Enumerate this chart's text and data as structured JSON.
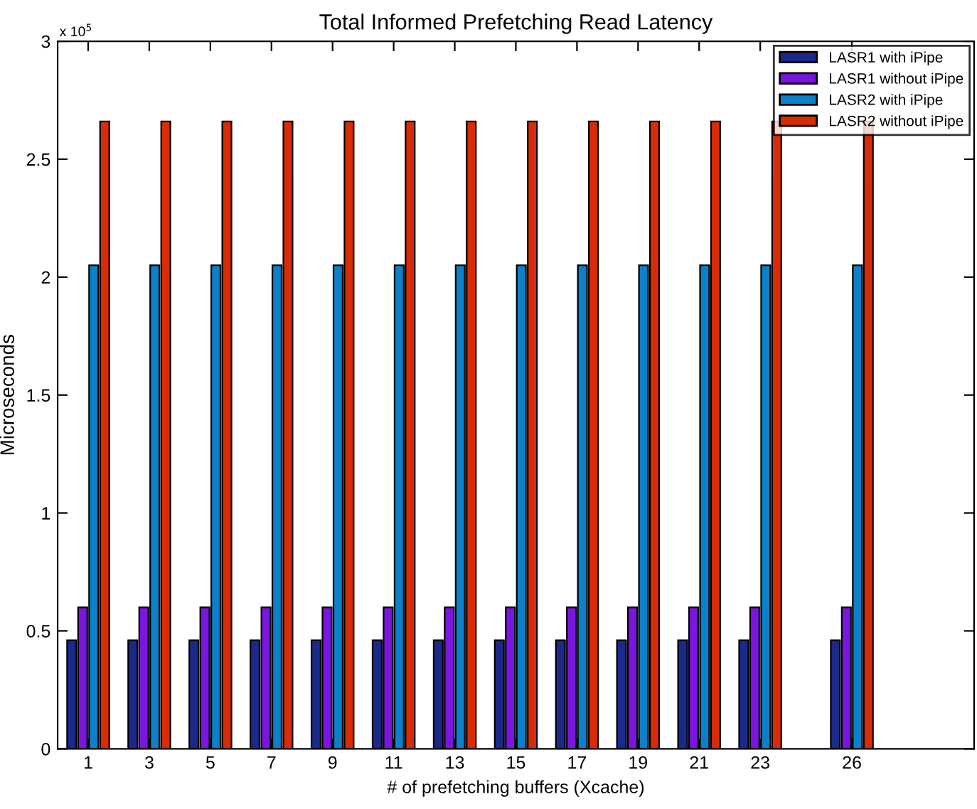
{
  "chart_data": {
    "type": "bar",
    "title": "Total Informed Prefetching Read Latency",
    "xlabel": "# of prefetching buffers (Xcache)",
    "ylabel": "Microseconds",
    "annotations": [
      "x 10$^{5}$"
    ],
    "x": [
      1,
      3,
      5,
      7,
      9,
      11,
      13,
      15,
      17,
      19,
      21,
      23,
      26
    ],
    "series": [
      {
        "name": "LASR1 with iPipe",
        "color": "#1b2a8a",
        "values": [
          0.46,
          0.46,
          0.46,
          0.46,
          0.46,
          0.46,
          0.46,
          0.46,
          0.46,
          0.46,
          0.46,
          0.46,
          0.46
        ]
      },
      {
        "name": "LASR1 without iPipe",
        "color": "#7a16e0",
        "values": [
          0.6,
          0.6,
          0.6,
          0.6,
          0.6,
          0.6,
          0.6,
          0.6,
          0.6,
          0.6,
          0.6,
          0.6,
          0.6
        ]
      },
      {
        "name": "LASR2 with iPipe",
        "color": "#0c80c8",
        "values": [
          2.05,
          2.05,
          2.05,
          2.05,
          2.05,
          2.05,
          2.05,
          2.05,
          2.05,
          2.05,
          2.05,
          2.05,
          2.05
        ]
      },
      {
        "name": "LASR2 without iPipe",
        "color": "#d92c06",
        "values": [
          2.66,
          2.66,
          2.66,
          2.66,
          2.66,
          2.66,
          2.66,
          2.66,
          2.66,
          2.66,
          2.66,
          2.66,
          2.66
        ]
      }
    ],
    "xlim": [
      0,
      30
    ],
    "xticks": [
      1,
      3,
      5,
      7,
      9,
      11,
      13,
      15,
      17,
      19,
      21,
      23,
      26
    ],
    "ylim": [
      0,
      3
    ],
    "yticks": [
      0,
      0.5,
      1,
      1.5,
      2,
      2.5,
      3
    ],
    "legend": "top right",
    "grid": false
  }
}
